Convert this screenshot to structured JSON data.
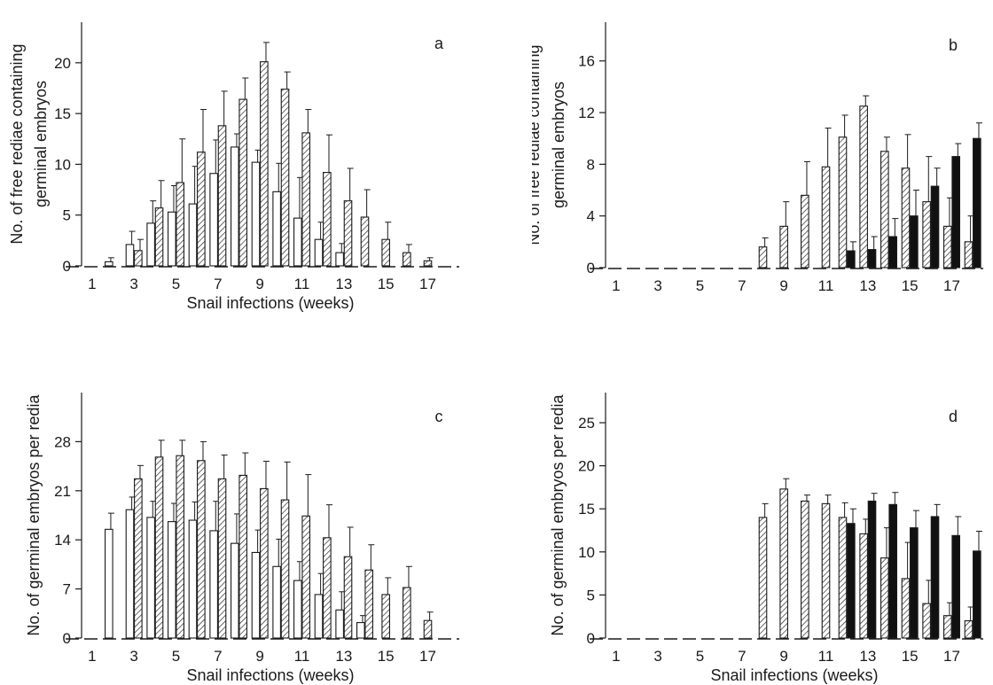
{
  "colors": {
    "ink": "#1a1a1a",
    "white_bar": "#ffffff",
    "solid_bar": "#111111"
  },
  "chart_data": [
    {
      "panel_label": "a",
      "type": "bar",
      "title": "",
      "ylabel_lines": [
        "No. of free rediae containing",
        "germinal embryos"
      ],
      "xlabel": "Snail infections (weeks)",
      "ylim": [
        0,
        24
      ],
      "yticks": [
        0,
        5,
        10,
        15,
        20
      ],
      "xlim": [
        0.5,
        18.5
      ],
      "xticks": [
        1,
        3,
        5,
        7,
        9,
        11,
        13,
        15,
        17
      ],
      "grid": false,
      "series": [
        {
          "style": "white",
          "x": [
            2,
            3,
            4,
            5,
            6,
            7,
            8,
            9,
            10,
            11,
            12,
            13
          ],
          "values": [
            0.4,
            2.1,
            4.2,
            5.3,
            6.1,
            9.1,
            11.7,
            10.2,
            7.3,
            4.7,
            2.6,
            1.3
          ],
          "errors": [
            0.4,
            1.3,
            2.2,
            2.6,
            3.7,
            3.3,
            1.3,
            1.2,
            2.8,
            4.0,
            1.7,
            0.9
          ]
        },
        {
          "style": "hatched",
          "x": [
            3,
            4,
            5,
            6,
            7,
            8,
            9,
            10,
            11,
            12,
            13,
            14,
            15,
            16,
            17
          ],
          "values": [
            1.5,
            5.7,
            8.2,
            11.2,
            13.8,
            16.4,
            20.1,
            17.4,
            13.1,
            9.2,
            6.4,
            4.8,
            2.6,
            1.3,
            0.5
          ],
          "errors": [
            1.1,
            2.7,
            4.3,
            4.2,
            3.4,
            2.1,
            1.9,
            1.7,
            2.3,
            3.7,
            3.2,
            2.7,
            1.7,
            0.8,
            0.3
          ]
        }
      ]
    },
    {
      "panel_label": "b",
      "type": "bar",
      "title": "",
      "ylabel_lines": [
        "No. of  free rediae containing",
        "germinal embryos"
      ],
      "xlabel": "Snail infections (weeks)",
      "ylim": [
        0,
        19
      ],
      "yticks": [
        0,
        4,
        8,
        12,
        16
      ],
      "xlim": [
        0.5,
        18.5
      ],
      "xticks": [
        1,
        3,
        5,
        7,
        9,
        11,
        13,
        15,
        17
      ],
      "grid": false,
      "series": [
        {
          "style": "hatched",
          "x": [
            8,
            9,
            10,
            11,
            12,
            13,
            14,
            15,
            16,
            17,
            18
          ],
          "values": [
            1.6,
            3.2,
            5.6,
            7.8,
            10.1,
            12.5,
            9.0,
            7.7,
            5.1,
            3.2,
            2.0
          ],
          "errors": [
            0.7,
            1.9,
            2.6,
            3.0,
            1.7,
            0.8,
            1.1,
            2.6,
            3.5,
            2.2,
            2.0
          ]
        },
        {
          "style": "solid",
          "x": [
            12,
            13,
            14,
            15,
            16,
            17,
            18
          ],
          "values": [
            1.3,
            1.4,
            2.4,
            4.0,
            6.3,
            8.6,
            10.0
          ],
          "errors": [
            0.7,
            1.0,
            1.4,
            2.0,
            1.4,
            1.0,
            1.2
          ]
        }
      ]
    },
    {
      "panel_label": "c",
      "type": "bar",
      "title": "",
      "ylabel_lines": [
        "No. of germinal embryos per redia"
      ],
      "xlabel": "Snail infections (weeks)",
      "ylim": [
        0,
        35
      ],
      "yticks": [
        0,
        7,
        14,
        21,
        28
      ],
      "xlim": [
        0.5,
        18.5
      ],
      "xticks": [
        1,
        3,
        5,
        7,
        9,
        11,
        13,
        15,
        17
      ],
      "grid": false,
      "series": [
        {
          "style": "white",
          "x": [
            2,
            3,
            4,
            5,
            6,
            7,
            8,
            9,
            10,
            11,
            12,
            13,
            14
          ],
          "values": [
            15.5,
            18.3,
            17.2,
            16.6,
            16.8,
            15.3,
            13.5,
            12.2,
            10.2,
            8.2,
            6.2,
            4.0,
            2.2
          ],
          "errors": [
            2.3,
            1.8,
            2.3,
            2.6,
            2.6,
            4.2,
            4.2,
            3.2,
            3.9,
            2.7,
            3.0,
            2.6,
            1.0
          ]
        },
        {
          "style": "hatched",
          "x": [
            3,
            4,
            5,
            6,
            7,
            8,
            9,
            10,
            11,
            12,
            13,
            14,
            15,
            16,
            17
          ],
          "values": [
            22.7,
            25.8,
            26.0,
            25.3,
            22.7,
            23.2,
            21.3,
            19.7,
            17.4,
            14.3,
            11.6,
            9.7,
            6.2,
            7.2,
            2.5
          ],
          "errors": [
            1.9,
            2.4,
            2.2,
            2.7,
            3.4,
            3.2,
            3.9,
            5.4,
            5.9,
            4.7,
            4.2,
            3.6,
            2.4,
            3.0,
            1.2
          ]
        }
      ]
    },
    {
      "panel_label": "d",
      "type": "bar",
      "title": "",
      "ylabel_lines": [
        "No. of germinal embryos per redia"
      ],
      "xlabel": "Snail infections (weeks)",
      "ylim": [
        0,
        28.5
      ],
      "yticks": [
        0,
        5,
        10,
        15,
        20,
        25
      ],
      "xlim": [
        0.5,
        18.5
      ],
      "xticks": [
        1,
        3,
        5,
        7,
        9,
        11,
        13,
        15,
        17
      ],
      "grid": false,
      "series": [
        {
          "style": "hatched",
          "x": [
            8,
            9,
            10,
            11,
            12,
            13,
            14,
            15,
            16,
            17,
            18
          ],
          "values": [
            14.0,
            17.3,
            15.9,
            15.6,
            14.0,
            12.1,
            9.3,
            6.9,
            4.0,
            2.6,
            2.0
          ],
          "errors": [
            1.6,
            1.2,
            0.7,
            1.0,
            1.7,
            1.7,
            3.5,
            4.2,
            2.7,
            1.5,
            1.6
          ]
        },
        {
          "style": "solid",
          "x": [
            12,
            13,
            14,
            15,
            16,
            17,
            18
          ],
          "values": [
            13.3,
            15.9,
            15.5,
            12.8,
            14.1,
            11.9,
            10.1
          ],
          "errors": [
            1.7,
            0.9,
            1.4,
            2.0,
            1.4,
            2.2,
            2.3
          ]
        }
      ]
    }
  ]
}
